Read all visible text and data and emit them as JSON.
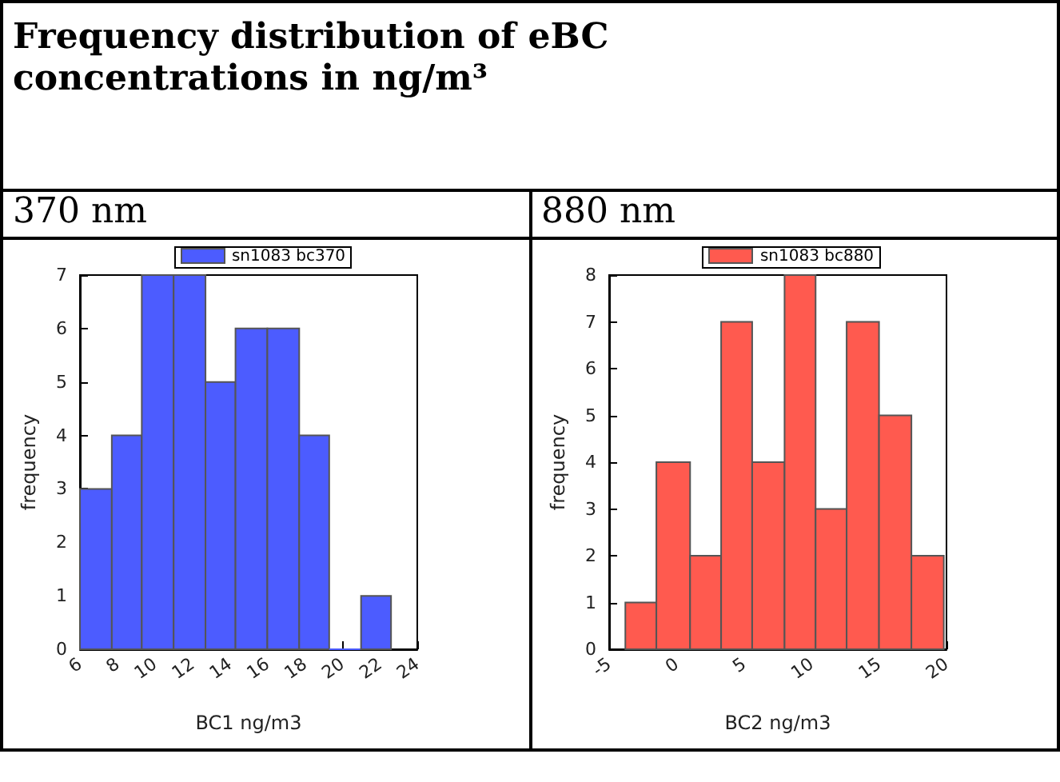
{
  "chart_data": [
    {
      "type": "histogram",
      "title": "Frequency distribution of eBC concentrations in ng/m³",
      "subtitle": "370 nm",
      "xlabel": "BC1 ng/m3",
      "ylabel": "frequency",
      "bins": [
        6,
        7.7,
        9.3,
        11,
        12.7,
        14.3,
        16,
        17.7,
        19.3,
        21,
        22.6
      ],
      "series": [
        {
          "name": "sn1083 bc370",
          "color": "#4c5cff",
          "values": [
            3,
            4,
            7,
            7,
            5,
            6,
            6,
            4,
            0,
            1
          ]
        }
      ],
      "xlim": [
        6,
        24
      ],
      "xticks": [
        6,
        8,
        10,
        12,
        14,
        16,
        18,
        20,
        22,
        24
      ],
      "ylim": [
        0,
        7
      ],
      "yticks": [
        0,
        1,
        2,
        3,
        4,
        5,
        6,
        7
      ],
      "legend": "top",
      "grid": false
    },
    {
      "type": "histogram",
      "subtitle": "880 nm",
      "xlabel": "BC2 ng/m3",
      "ylabel": "frequency",
      "bins": [
        -3.8,
        -1.5,
        1,
        3.3,
        5.6,
        8,
        10.3,
        12.6,
        15,
        17.4,
        19.8
      ],
      "series": [
        {
          "name": "sn1083 bc880",
          "color": "#ff5a4f",
          "values": [
            1,
            4,
            2,
            7,
            4,
            8,
            3,
            7,
            5,
            2
          ]
        }
      ],
      "xlim": [
        -5,
        20
      ],
      "xticks": [
        -5,
        0,
        5,
        10,
        15,
        20
      ],
      "ylim": [
        0,
        8
      ],
      "yticks": [
        0,
        1,
        2,
        3,
        4,
        5,
        6,
        7,
        8
      ],
      "legend": "top",
      "grid": false
    }
  ]
}
